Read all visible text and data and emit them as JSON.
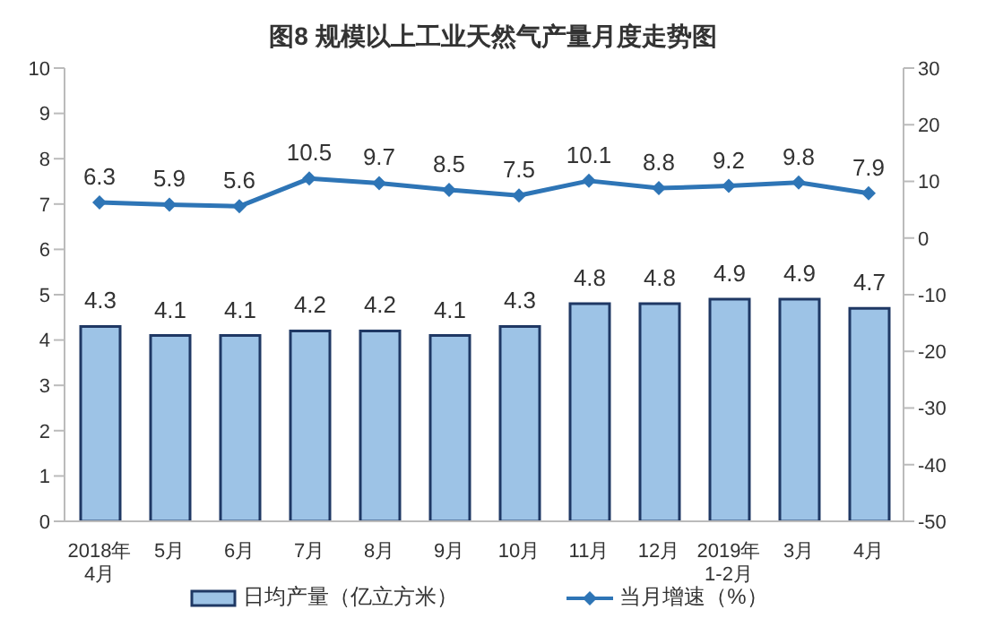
{
  "chart_data": {
    "type": "bar",
    "title": "图8  规模以上工业天然气产量月度走势图",
    "categories": [
      "2018年4月",
      "5月",
      "6月",
      "7月",
      "8月",
      "9月",
      "10月",
      "11月",
      "12月",
      "2019年1-2月",
      "3月",
      "4月"
    ],
    "series": [
      {
        "name": "日均产量（亿立方米）",
        "color": "#9dc3e6",
        "values": [
          4.3,
          4.1,
          4.1,
          4.2,
          4.2,
          4.1,
          4.3,
          4.8,
          4.8,
          4.9,
          4.9,
          4.7
        ]
      },
      {
        "name": "当月增速（%）",
        "type": "line",
        "axis": "y2",
        "color": "#2e75b6",
        "marker": "diamond",
        "values": [
          6.3,
          5.9,
          5.6,
          10.5,
          9.7,
          8.5,
          7.5,
          10.1,
          8.8,
          9.2,
          9.8,
          7.9
        ]
      }
    ],
    "ylim": [
      0,
      10
    ],
    "yticks": [
      0,
      1,
      2,
      3,
      4,
      5,
      6,
      7,
      8,
      9,
      10
    ],
    "y2lim": [
      -50,
      30
    ],
    "y2ticks": [
      -50,
      -40,
      -30,
      -20,
      -10,
      0,
      10,
      20,
      30
    ],
    "data_labels": true,
    "legend": "bottom",
    "grid": false,
    "line_style": "solid"
  }
}
